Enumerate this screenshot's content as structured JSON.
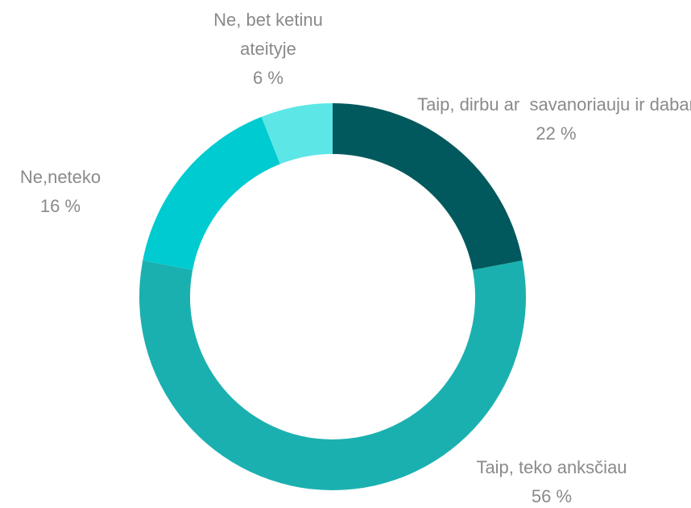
{
  "chart_data": {
    "type": "donut",
    "categories": [
      "Taip, dirbu ar  savanoriauju ir dabar",
      "Taip, teko anksčiau",
      "Ne,neteko",
      "Ne, bet ketinu ateityje"
    ],
    "values": [
      22,
      56,
      16,
      6
    ],
    "value_labels": [
      "22 %",
      "56 %",
      "16 %",
      "6 %"
    ],
    "colors": [
      "#02595d",
      "#1bb0b0",
      "#00cbd0",
      "#5de6e6"
    ]
  }
}
